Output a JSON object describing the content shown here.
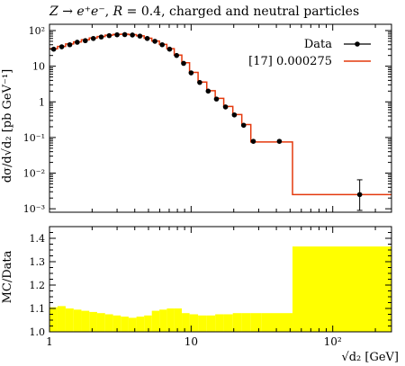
{
  "chart_data": [
    {
      "type": "line",
      "panel": "main",
      "title": {
        "proc_lhs": "Z",
        "proc_arrow": "→",
        "proc_rhs": "e⁺e⁻",
        "r_symbol": "R",
        "r_value": "= 0.4",
        "desc": ", charged and neutral particles"
      },
      "xlabel": "√d₂ [GeV]",
      "ylabel": "dσ/d√d₂ [pb GeV⁻¹]",
      "xscale": "log",
      "yscale": "log",
      "xlim": [
        1,
        260
      ],
      "ylim": [
        0.0008,
        150
      ],
      "x_tick_labels": [
        "1",
        "10",
        "10²"
      ],
      "y_tick_labels": [
        "10⁻³",
        "10⁻²",
        "10⁻¹",
        "1",
        "10",
        "10²"
      ],
      "legend_position": "top-right",
      "series": [
        {
          "name": "Data",
          "style": "points",
          "color": "#000000",
          "x": [
            1.07,
            1.22,
            1.39,
            1.57,
            1.79,
            2.04,
            2.32,
            2.64,
            3.0,
            3.4,
            3.85,
            4.35,
            4.9,
            5.55,
            6.25,
            7.05,
            7.9,
            8.85,
            10.0,
            11.5,
            13.2,
            15.1,
            17.5,
            20.2,
            23.5,
            27.5,
            42.0,
            155.0
          ],
          "y": [
            30,
            35,
            40,
            47,
            52,
            60,
            66,
            72,
            76,
            77,
            75,
            70,
            60,
            50,
            40,
            30,
            20,
            12,
            6.5,
            3.5,
            2.0,
            1.2,
            0.72,
            0.43,
            0.22,
            0.078,
            0.078,
            0.0025
          ],
          "errors_hi": [
            0,
            0,
            0,
            0,
            0,
            0,
            0,
            0,
            0,
            0,
            0,
            0,
            0,
            0,
            0,
            0,
            0,
            0,
            0,
            0,
            0,
            0,
            0,
            0,
            0,
            0,
            0,
            0.004
          ],
          "errors_lo": [
            0,
            0,
            0,
            0,
            0,
            0,
            0,
            0,
            0,
            0,
            0,
            0,
            0,
            0,
            0,
            0,
            0,
            0,
            0,
            0,
            0,
            0,
            0,
            0,
            0,
            0,
            0,
            0.0016
          ]
        },
        {
          "name": "[17] 0.000275",
          "style": "step",
          "color": "#e4380c",
          "edges": [
            1.0,
            1.14,
            1.3,
            1.48,
            1.68,
            1.91,
            2.17,
            2.47,
            2.81,
            3.19,
            3.62,
            4.11,
            4.66,
            5.28,
            5.97,
            6.74,
            7.6,
            8.6,
            9.75,
            11.2,
            12.9,
            14.8,
            17.0,
            19.7,
            22.8,
            26.4,
            31.5,
            52.0,
            260.0
          ],
          "values": [
            31,
            36,
            42,
            48,
            55,
            62,
            68,
            74,
            78,
            79,
            77,
            71,
            61,
            51,
            41,
            31,
            20.5,
            12.5,
            6.7,
            3.6,
            2.05,
            1.25,
            0.74,
            0.44,
            0.23,
            0.075,
            0.075,
            0.0025
          ]
        }
      ]
    },
    {
      "type": "area",
      "panel": "ratio",
      "ylabel": "MC/Data",
      "xscale": "log",
      "xlim": [
        1,
        260
      ],
      "ylim": [
        1.0,
        1.45
      ],
      "y_tick_labels": [
        "1.0",
        "1.1",
        "1.2",
        "1.3",
        "1.4"
      ],
      "series": [
        {
          "name": "",
          "color": "#ffff00",
          "edges": [
            1.0,
            1.14,
            1.3,
            1.48,
            1.68,
            1.91,
            2.17,
            2.47,
            2.81,
            3.19,
            3.62,
            4.11,
            4.66,
            5.28,
            5.97,
            6.74,
            7.6,
            8.6,
            9.75,
            11.2,
            12.9,
            14.8,
            17.0,
            19.7,
            22.8,
            26.4,
            31.5,
            52.0,
            260.0
          ],
          "values": [
            1.105,
            1.11,
            1.1,
            1.095,
            1.09,
            1.085,
            1.08,
            1.075,
            1.07,
            1.065,
            1.06,
            1.065,
            1.07,
            1.09,
            1.095,
            1.1,
            1.1,
            1.08,
            1.075,
            1.07,
            1.07,
            1.075,
            1.075,
            1.08,
            1.08,
            1.08,
            1.08,
            1.365
          ]
        }
      ]
    }
  ]
}
